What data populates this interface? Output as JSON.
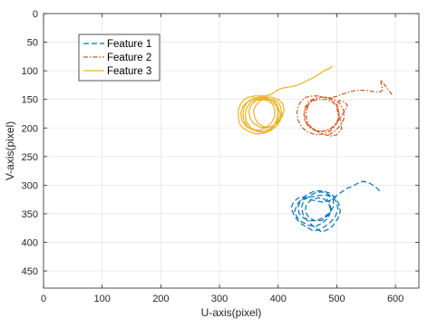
{
  "chart_data": {
    "type": "line",
    "title": "",
    "xlabel": "U-axis(pixel)",
    "ylabel": "V-axis(pixel)",
    "xlim": [
      0,
      640
    ],
    "ylim": [
      0,
      480
    ],
    "y_reversed": true,
    "xticks": [
      0,
      100,
      200,
      300,
      400,
      500,
      600
    ],
    "yticks": [
      0,
      50,
      100,
      150,
      200,
      250,
      300,
      350,
      400,
      450
    ],
    "grid": true,
    "legend_position": "top-left",
    "series": [
      {
        "name": "Feature 1",
        "color": "#0072BD",
        "dash": "6,3",
        "points": [
          [
            573,
            310
          ],
          [
            565,
            302
          ],
          [
            555,
            296
          ],
          [
            545,
            293
          ],
          [
            535,
            297
          ],
          [
            527,
            302
          ],
          [
            518,
            305
          ],
          [
            508,
            312
          ],
          [
            497,
            320
          ],
          [
            488,
            327
          ],
          [
            478,
            330
          ],
          [
            468,
            328
          ],
          [
            458,
            326
          ],
          [
            448,
            322
          ],
          [
            440,
            320
          ],
          [
            432,
            324
          ],
          [
            426,
            330
          ],
          [
            422,
            340
          ],
          [
            426,
            350
          ],
          [
            432,
            360
          ],
          [
            440,
            368
          ],
          [
            450,
            374
          ],
          [
            460,
            380
          ],
          [
            470,
            378
          ],
          [
            480,
            372
          ],
          [
            490,
            364
          ],
          [
            498,
            354
          ],
          [
            502,
            342
          ],
          [
            500,
            330
          ],
          [
            494,
            322
          ],
          [
            484,
            318
          ],
          [
            470,
            318
          ],
          [
            458,
            320
          ],
          [
            446,
            322
          ],
          [
            438,
            328
          ],
          [
            434,
            338
          ],
          [
            436,
            350
          ],
          [
            444,
            358
          ],
          [
            454,
            362
          ],
          [
            466,
            362
          ],
          [
            478,
            356
          ],
          [
            488,
            348
          ],
          [
            494,
            338
          ],
          [
            494,
            326
          ],
          [
            488,
            318
          ],
          [
            478,
            312
          ],
          [
            466,
            312
          ],
          [
            454,
            318
          ],
          [
            444,
            326
          ],
          [
            440,
            338
          ],
          [
            442,
            350
          ],
          [
            450,
            362
          ],
          [
            460,
            372
          ],
          [
            474,
            382
          ],
          [
            484,
            378
          ],
          [
            494,
            370
          ],
          [
            502,
            358
          ],
          [
            506,
            346
          ],
          [
            504,
            334
          ],
          [
            498,
            322
          ],
          [
            488,
            314
          ],
          [
            476,
            310
          ],
          [
            462,
            310
          ],
          [
            450,
            316
          ],
          [
            440,
            324
          ],
          [
            432,
            334
          ],
          [
            428,
            346
          ],
          [
            432,
            356
          ],
          [
            440,
            364
          ],
          [
            452,
            370
          ],
          [
            464,
            372
          ],
          [
            476,
            366
          ],
          [
            486,
            356
          ],
          [
            490,
            344
          ],
          [
            486,
            332
          ],
          [
            478,
            324
          ],
          [
            468,
            322
          ],
          [
            456,
            326
          ],
          [
            448,
            334
          ],
          [
            446,
            346
          ],
          [
            452,
            356
          ],
          [
            462,
            362
          ],
          [
            474,
            362
          ],
          [
            484,
            354
          ],
          [
            490,
            342
          ],
          [
            488,
            330
          ],
          [
            480,
            322
          ]
        ]
      },
      {
        "name": "Feature 2",
        "color": "#D95319",
        "dash": "5,2,1.5,2",
        "points": [
          [
            594,
            142
          ],
          [
            590,
            136
          ],
          [
            584,
            128
          ],
          [
            578,
            120
          ],
          [
            575,
            116
          ],
          [
            576,
            124
          ],
          [
            578,
            134
          ],
          [
            572,
            138
          ],
          [
            560,
            136
          ],
          [
            548,
            134
          ],
          [
            536,
            134
          ],
          [
            524,
            136
          ],
          [
            512,
            140
          ],
          [
            502,
            144
          ],
          [
            494,
            146
          ],
          [
            486,
            148
          ],
          [
            478,
            146
          ],
          [
            468,
            144
          ],
          [
            458,
            144
          ],
          [
            448,
            146
          ],
          [
            440,
            152
          ],
          [
            434,
            162
          ],
          [
            432,
            174
          ],
          [
            434,
            186
          ],
          [
            440,
            198
          ],
          [
            448,
            206
          ],
          [
            458,
            210
          ],
          [
            468,
            212
          ],
          [
            478,
            210
          ],
          [
            488,
            206
          ],
          [
            496,
            198
          ],
          [
            502,
            188
          ],
          [
            504,
            176
          ],
          [
            502,
            164
          ],
          [
            496,
            154
          ],
          [
            486,
            148
          ],
          [
            474,
            146
          ],
          [
            462,
            148
          ],
          [
            452,
            154
          ],
          [
            446,
            164
          ],
          [
            444,
            176
          ],
          [
            446,
            188
          ],
          [
            452,
            198
          ],
          [
            462,
            204
          ],
          [
            474,
            206
          ],
          [
            486,
            204
          ],
          [
            496,
            196
          ],
          [
            502,
            186
          ],
          [
            504,
            174
          ],
          [
            500,
            162
          ],
          [
            492,
            154
          ],
          [
            480,
            150
          ],
          [
            468,
            150
          ],
          [
            456,
            154
          ],
          [
            448,
            164
          ],
          [
            444,
            176
          ],
          [
            446,
            188
          ],
          [
            454,
            198
          ],
          [
            464,
            204
          ],
          [
            476,
            206
          ],
          [
            488,
            202
          ],
          [
            498,
            194
          ],
          [
            506,
            182
          ],
          [
            514,
            170
          ],
          [
            518,
            160
          ],
          [
            512,
            154
          ],
          [
            504,
            152
          ],
          [
            500,
            162
          ],
          [
            502,
            176
          ],
          [
            508,
            190
          ],
          [
            508,
            202
          ],
          [
            500,
            212
          ],
          [
            490,
            214
          ],
          [
            480,
            212
          ],
          [
            470,
            208
          ],
          [
            460,
            202
          ],
          [
            452,
            194
          ],
          [
            448,
            182
          ],
          [
            448,
            170
          ],
          [
            452,
            158
          ],
          [
            460,
            150
          ],
          [
            472,
            146
          ],
          [
            484,
            146
          ],
          [
            496,
            150
          ],
          [
            506,
            158
          ],
          [
            512,
            170
          ],
          [
            512,
            184
          ],
          [
            506,
            196
          ],
          [
            496,
            206
          ],
          [
            486,
            212
          ]
        ]
      },
      {
        "name": "Feature 3",
        "color": "#EDB120",
        "dash": "",
        "points": [
          [
            492,
            92
          ],
          [
            488,
            96
          ],
          [
            482,
            98
          ],
          [
            472,
            104
          ],
          [
            464,
            110
          ],
          [
            456,
            114
          ],
          [
            448,
            118
          ],
          [
            440,
            122
          ],
          [
            430,
            126
          ],
          [
            420,
            128
          ],
          [
            408,
            130
          ],
          [
            398,
            134
          ],
          [
            390,
            140
          ],
          [
            380,
            144
          ],
          [
            370,
            144
          ],
          [
            360,
            144
          ],
          [
            350,
            146
          ],
          [
            342,
            150
          ],
          [
            336,
            158
          ],
          [
            332,
            168
          ],
          [
            332,
            180
          ],
          [
            334,
            192
          ],
          [
            340,
            200
          ],
          [
            350,
            206
          ],
          [
            360,
            210
          ],
          [
            370,
            210
          ],
          [
            380,
            208
          ],
          [
            388,
            202
          ],
          [
            394,
            194
          ],
          [
            398,
            184
          ],
          [
            400,
            172
          ],
          [
            398,
            160
          ],
          [
            392,
            152
          ],
          [
            382,
            148
          ],
          [
            370,
            146
          ],
          [
            358,
            148
          ],
          [
            348,
            154
          ],
          [
            342,
            164
          ],
          [
            340,
            176
          ],
          [
            342,
            188
          ],
          [
            348,
            198
          ],
          [
            358,
            204
          ],
          [
            370,
            206
          ],
          [
            382,
            204
          ],
          [
            392,
            198
          ],
          [
            398,
            188
          ],
          [
            400,
            176
          ],
          [
            398,
            164
          ],
          [
            392,
            156
          ],
          [
            384,
            150
          ],
          [
            374,
            148
          ],
          [
            362,
            150
          ],
          [
            352,
            156
          ],
          [
            346,
            166
          ],
          [
            344,
            178
          ],
          [
            346,
            190
          ],
          [
            354,
            200
          ],
          [
            364,
            206
          ],
          [
            376,
            208
          ],
          [
            388,
            204
          ],
          [
            398,
            196
          ],
          [
            404,
            186
          ],
          [
            406,
            174
          ],
          [
            404,
            162
          ],
          [
            398,
            154
          ],
          [
            390,
            150
          ],
          [
            380,
            150
          ],
          [
            370,
            152
          ],
          [
            362,
            160
          ],
          [
            358,
            170
          ],
          [
            360,
            182
          ],
          [
            366,
            192
          ],
          [
            376,
            198
          ],
          [
            388,
            198
          ],
          [
            398,
            192
          ],
          [
            406,
            182
          ],
          [
            410,
            170
          ],
          [
            408,
            158
          ],
          [
            400,
            150
          ],
          [
            388,
            146
          ],
          [
            374,
            146
          ],
          [
            360,
            148
          ],
          [
            348,
            154
          ],
          [
            340,
            162
          ],
          [
            336,
            174
          ],
          [
            338,
            186
          ],
          [
            344,
            196
          ],
          [
            354,
            202
          ],
          [
            366,
            204
          ],
          [
            378,
            200
          ],
          [
            388,
            192
          ],
          [
            394,
            180
          ],
          [
            394,
            168
          ],
          [
            390,
            158
          ],
          [
            382,
            152
          ],
          [
            372,
            150
          ],
          [
            362,
            152
          ],
          [
            354,
            160
          ],
          [
            350,
            170
          ],
          [
            352,
            182
          ],
          [
            358,
            192
          ],
          [
            368,
            198
          ],
          [
            380,
            200
          ],
          [
            392,
            196
          ],
          [
            400,
            188
          ],
          [
            404,
            176
          ],
          [
            400,
            164
          ]
        ]
      }
    ]
  }
}
